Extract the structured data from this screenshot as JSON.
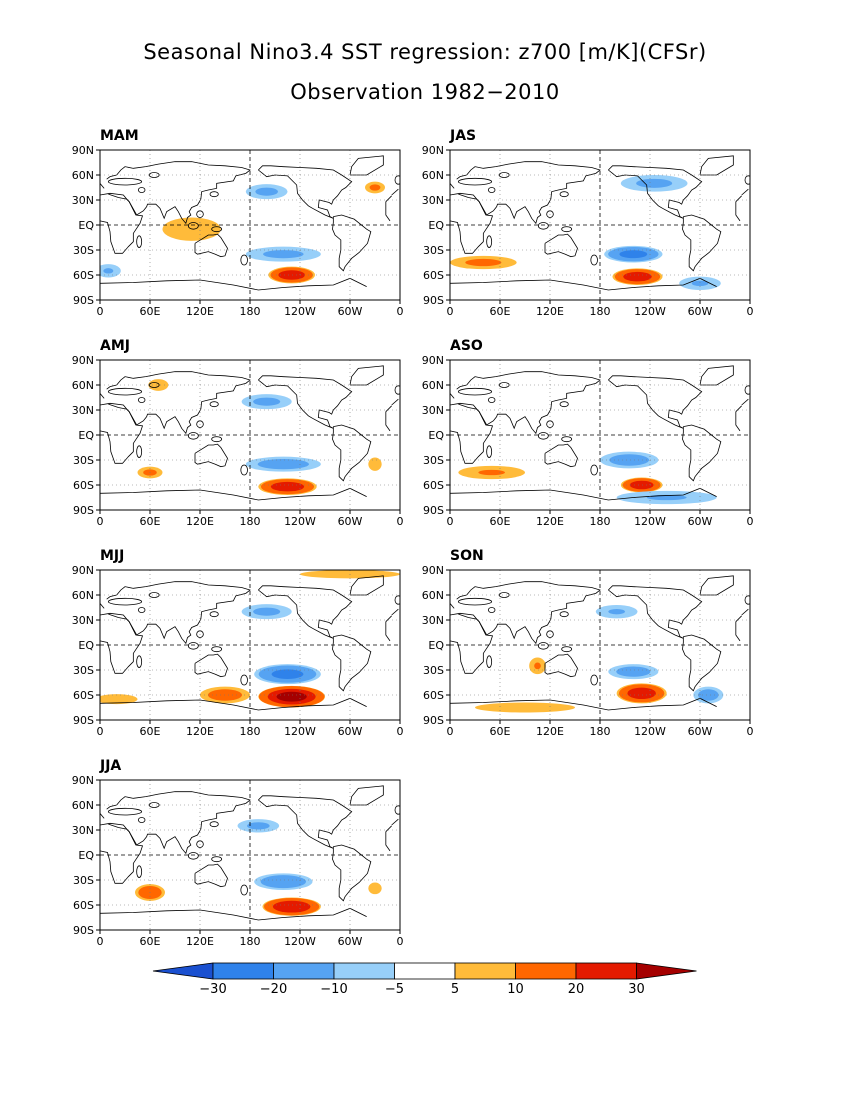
{
  "title": "Seasonal Nino3.4 SST regression: z700 [m/K](CFSr)",
  "subtitle": "Observation 1982−2010",
  "lat_ticks": [
    "90N",
    "60N",
    "30N",
    "EQ",
    "30S",
    "60S",
    "90S"
  ],
  "lon_ticks": [
    "0",
    "60E",
    "120E",
    "180",
    "120W",
    "60W",
    "0"
  ],
  "panels": [
    {
      "label": "MAM"
    },
    {
      "label": "JAS"
    },
    {
      "label": "AMJ"
    },
    {
      "label": "ASO"
    },
    {
      "label": "MJJ"
    },
    {
      "label": "SON"
    },
    {
      "label": "JJA"
    }
  ],
  "colorbar": {
    "labels": [
      "−30",
      "−20",
      "−10",
      "−5",
      "5",
      "10",
      "20",
      "30"
    ],
    "colors": [
      "#1e5fd8",
      "#2f82ea",
      "#56a3f2",
      "#97cff9",
      "#ffffff",
      "#ffbb3a",
      "#ff6700",
      "#e41a00",
      "#a50000"
    ],
    "end_left_color": "#1a50d0",
    "end_right_color": "#a50000"
  },
  "chart_data": {
    "type": "heatmap",
    "title": "Seasonal Nino3.4 SST regression: z700 [m/K](CFSr)",
    "subtitle": "Observation 1982−2010",
    "levels": [
      -30,
      -20,
      -10,
      -5,
      5,
      10,
      20,
      30
    ],
    "panels": [
      {
        "season": "MAM",
        "features": [
          {
            "lon": 230,
            "lat": -60,
            "value": 25,
            "rx": 28,
            "ry": 10
          },
          {
            "lon": 110,
            "lat": -5,
            "value": 8,
            "rx": 35,
            "ry": 14
          },
          {
            "lon": 200,
            "lat": 40,
            "value": -12,
            "rx": 25,
            "ry": 9
          },
          {
            "lon": 220,
            "lat": -35,
            "value": -12,
            "rx": 45,
            "ry": 9
          },
          {
            "lon": 330,
            "lat": 45,
            "value": 12,
            "rx": 12,
            "ry": 7
          },
          {
            "lon": 10,
            "lat": -55,
            "value": -10,
            "rx": 15,
            "ry": 8
          }
        ]
      },
      {
        "season": "JAS",
        "features": [
          {
            "lon": 225,
            "lat": -62,
            "value": 25,
            "rx": 30,
            "ry": 10
          },
          {
            "lon": 220,
            "lat": -35,
            "value": -22,
            "rx": 35,
            "ry": 10
          },
          {
            "lon": 40,
            "lat": -45,
            "value": 12,
            "rx": 40,
            "ry": 8
          },
          {
            "lon": 300,
            "lat": -70,
            "value": -10,
            "rx": 25,
            "ry": 8
          },
          {
            "lon": 245,
            "lat": 50,
            "value": -12,
            "rx": 40,
            "ry": 10
          }
        ]
      },
      {
        "season": "AMJ",
        "features": [
          {
            "lon": 225,
            "lat": -62,
            "value": 25,
            "rx": 35,
            "ry": 10
          },
          {
            "lon": 220,
            "lat": -35,
            "value": -15,
            "rx": 45,
            "ry": 9
          },
          {
            "lon": 60,
            "lat": -45,
            "value": 12,
            "rx": 15,
            "ry": 7
          },
          {
            "lon": 200,
            "lat": 40,
            "value": -12,
            "rx": 30,
            "ry": 9
          },
          {
            "lon": 70,
            "lat": 60,
            "value": 8,
            "rx": 12,
            "ry": 7
          },
          {
            "lon": 330,
            "lat": -35,
            "value": 8,
            "rx": 8,
            "ry": 8
          }
        ]
      },
      {
        "season": "ASO",
        "features": [
          {
            "lon": 230,
            "lat": -60,
            "value": 25,
            "rx": 25,
            "ry": 9
          },
          {
            "lon": 215,
            "lat": -30,
            "value": -15,
            "rx": 35,
            "ry": 10
          },
          {
            "lon": 50,
            "lat": -45,
            "value": 10,
            "rx": 40,
            "ry": 8
          },
          {
            "lon": 260,
            "lat": -75,
            "value": -10,
            "rx": 60,
            "ry": 8
          }
        ]
      },
      {
        "season": "MJJ",
        "features": [
          {
            "lon": 230,
            "lat": -62,
            "value": 32,
            "rx": 40,
            "ry": 13
          },
          {
            "lon": 225,
            "lat": -35,
            "value": -22,
            "rx": 40,
            "ry": 12
          },
          {
            "lon": 150,
            "lat": -60,
            "value": 15,
            "rx": 30,
            "ry": 10
          },
          {
            "lon": 200,
            "lat": 40,
            "value": -12,
            "rx": 30,
            "ry": 9
          },
          {
            "lon": 20,
            "lat": -65,
            "value": 8,
            "rx": 25,
            "ry": 6
          },
          {
            "lon": 300,
            "lat": 85,
            "value": 8,
            "rx": 60,
            "ry": 5
          }
        ]
      },
      {
        "season": "SON",
        "features": [
          {
            "lon": 230,
            "lat": -58,
            "value": 25,
            "rx": 30,
            "ry": 12
          },
          {
            "lon": 220,
            "lat": -32,
            "value": -15,
            "rx": 30,
            "ry": 9
          },
          {
            "lon": 310,
            "lat": -60,
            "value": -15,
            "rx": 18,
            "ry": 10
          },
          {
            "lon": 105,
            "lat": -25,
            "value": 10,
            "rx": 10,
            "ry": 10
          },
          {
            "lon": 90,
            "lat": -75,
            "value": 8,
            "rx": 60,
            "ry": 6
          },
          {
            "lon": 200,
            "lat": 40,
            "value": -10,
            "rx": 25,
            "ry": 8
          }
        ]
      },
      {
        "season": "JJA",
        "features": [
          {
            "lon": 230,
            "lat": -62,
            "value": 28,
            "rx": 35,
            "ry": 11
          },
          {
            "lon": 220,
            "lat": -32,
            "value": -18,
            "rx": 35,
            "ry": 10
          },
          {
            "lon": 60,
            "lat": -45,
            "value": 18,
            "rx": 18,
            "ry": 10
          },
          {
            "lon": 190,
            "lat": 35,
            "value": -12,
            "rx": 25,
            "ry": 8
          },
          {
            "lon": 330,
            "lat": -40,
            "value": 8,
            "rx": 8,
            "ry": 7
          }
        ]
      }
    ]
  }
}
